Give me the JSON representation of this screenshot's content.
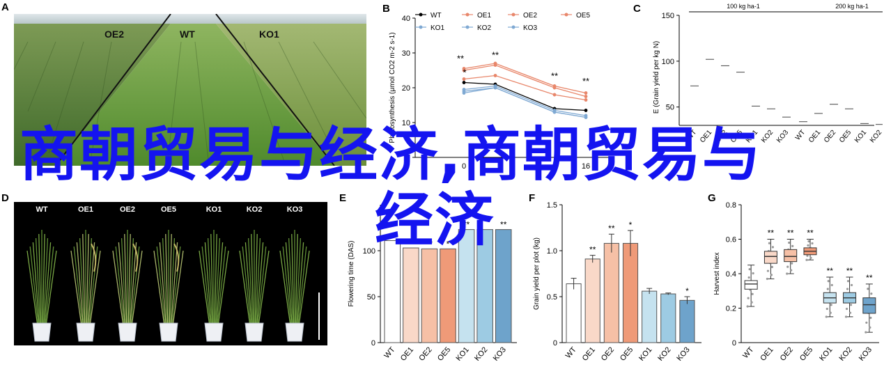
{
  "panels": {
    "A": {
      "letter": "A",
      "labels": [
        "OE2",
        "WT",
        "KO1"
      ]
    },
    "B": {
      "letter": "B"
    },
    "C": {
      "letter": "C"
    },
    "D": {
      "letter": "D",
      "labels": [
        "WT",
        "OE1",
        "OE2",
        "OE5",
        "KO1",
        "KO2",
        "KO3"
      ]
    },
    "E": {
      "letter": "E"
    },
    "F": {
      "letter": "F"
    },
    "G": {
      "letter": "G"
    }
  },
  "overlay": {
    "line1": "商朝贸易与经济,商朝贸易与",
    "line2": "经济",
    "color": "#1414f0"
  },
  "colors": {
    "WT": "#ffffff",
    "OE1": "#f9d8c8",
    "OE2": "#f6c0a6",
    "OE5": "#ef9a78",
    "KO1": "#c5e2ef",
    "KO2": "#9dcbe3",
    "KO3": "#6ea3cb",
    "WT_line": "#000000",
    "OE_line": "#e8866a",
    "KO_line": "#7fa9d3"
  },
  "chart_data": [
    {
      "panel": "B",
      "type": "line",
      "ylabel": "Photosynthesis (μmol CO2 m-2 s-1)",
      "xlabel": "",
      "ylim": [
        0,
        40
      ],
      "yticks": [
        0,
        10,
        20,
        30,
        40
      ],
      "xticks": [
        "0",
        "16"
      ],
      "x": [
        0,
        4,
        8,
        12
      ],
      "legend": [
        "WT",
        "OE1",
        "OE2",
        "OE5",
        "KO1",
        "KO2",
        "KO3"
      ],
      "legend_position": "top",
      "annotations": [
        "**",
        "*",
        "**",
        "**",
        "**"
      ],
      "series": [
        {
          "name": "WT",
          "values": [
            21.5,
            21.0,
            14.0,
            13.5
          ]
        },
        {
          "name": "OE1",
          "values": [
            22.5,
            23.5,
            18.0,
            16.5
          ]
        },
        {
          "name": "OE2",
          "values": [
            25.5,
            27.0,
            20.5,
            18.5
          ]
        },
        {
          "name": "OE5",
          "values": [
            25.0,
            26.5,
            20.0,
            17.5
          ]
        },
        {
          "name": "KO1",
          "values": [
            18.5,
            20.0,
            13.0,
            11.5
          ]
        },
        {
          "name": "KO2",
          "values": [
            19.5,
            20.5,
            13.5,
            12.0
          ]
        },
        {
          "name": "KO3",
          "values": [
            19.0,
            20.0,
            13.0,
            11.5
          ]
        }
      ]
    },
    {
      "panel": "C",
      "type": "box",
      "ylabel": "E (Grain yield per kg N)",
      "ylim": [
        30,
        150
      ],
      "yticks": [
        50,
        100,
        150
      ],
      "groups": [
        "100 kg ha-1",
        "200 kg ha-1"
      ],
      "categories": [
        "WT",
        "OE1",
        "OE2",
        "OE5",
        "KO1",
        "KO2",
        "KO3"
      ],
      "series": [
        {
          "name": "100 kg ha-1",
          "median": [
            73,
            102,
            95,
            88,
            51,
            48,
            39
          ],
          "q1": [
            58,
            88,
            82,
            80,
            46,
            45,
            35
          ],
          "q3": [
            78,
            118,
            100,
            93,
            55,
            51,
            42
          ],
          "sig": [
            "",
            "*",
            "*",
            "*",
            "",
            "*",
            "*"
          ]
        },
        {
          "name": "200 kg ha-1",
          "median": [
            34,
            43,
            53,
            48,
            32,
            31,
            28
          ],
          "q1": [
            31,
            40,
            50,
            45,
            28,
            29,
            25
          ],
          "q3": [
            37,
            46,
            57,
            50,
            35,
            33,
            31
          ],
          "sig": [
            "",
            "**",
            "**",
            "**",
            "",
            "**",
            "**"
          ]
        }
      ]
    },
    {
      "panel": "E",
      "type": "bar",
      "ylabel": "Flowering time (DAS)",
      "ylim": [
        0,
        150
      ],
      "yticks": [
        0,
        50,
        100
      ],
      "categories": [
        "WT",
        "OE1",
        "OE2",
        "OE5",
        "KO1",
        "KO2",
        "KO3"
      ],
      "values": [
        111,
        103,
        102,
        102,
        123,
        123,
        123
      ],
      "sig": [
        "",
        "**",
        "**",
        "*",
        "**",
        "",
        "**"
      ]
    },
    {
      "panel": "F",
      "type": "bar",
      "ylabel": "Grain yield per plot (kg)",
      "ylim": [
        0,
        1.5
      ],
      "yticks": [
        0,
        0.5,
        1.0,
        1.5
      ],
      "categories": [
        "WT",
        "OE1",
        "OE2",
        "OE5",
        "KO1",
        "KO2",
        "KO3"
      ],
      "values": [
        0.64,
        0.91,
        1.08,
        1.08,
        0.56,
        0.53,
        0.46
      ],
      "errors": [
        0.06,
        0.04,
        0.1,
        0.14,
        0.03,
        0.01,
        0.04
      ],
      "sig": [
        "",
        "**",
        "**",
        "*",
        "",
        "",
        "*"
      ]
    },
    {
      "panel": "G",
      "type": "box",
      "ylabel": "Harvest index",
      "ylim": [
        0,
        0.8
      ],
      "yticks": [
        0,
        0.2,
        0.4,
        0.6,
        0.8
      ],
      "categories": [
        "WT",
        "OE1",
        "OE2",
        "OE5",
        "KO1",
        "KO2",
        "KO3"
      ],
      "median": [
        0.34,
        0.5,
        0.5,
        0.53,
        0.26,
        0.26,
        0.22
      ],
      "q1": [
        0.31,
        0.46,
        0.47,
        0.51,
        0.23,
        0.23,
        0.17
      ],
      "q3": [
        0.36,
        0.53,
        0.54,
        0.55,
        0.29,
        0.29,
        0.26
      ],
      "wlo": [
        0.21,
        0.37,
        0.4,
        0.48,
        0.15,
        0.15,
        0.06
      ],
      "whi": [
        0.45,
        0.6,
        0.6,
        0.6,
        0.38,
        0.38,
        0.34
      ],
      "sig": [
        "",
        "**",
        "**",
        "**",
        "**",
        "**",
        "**"
      ]
    }
  ]
}
